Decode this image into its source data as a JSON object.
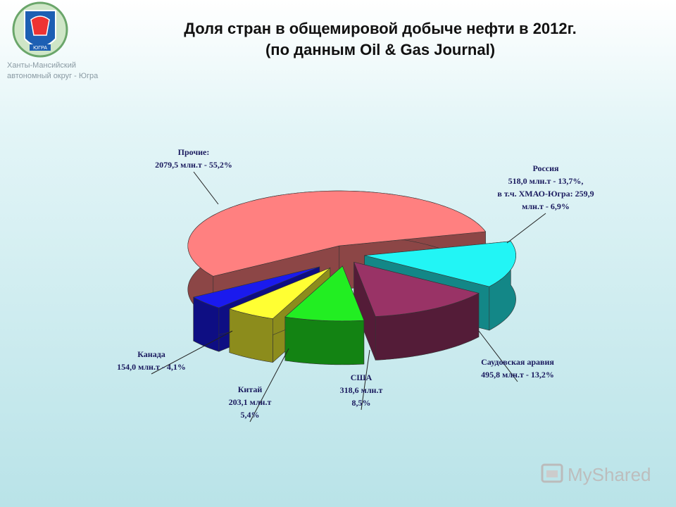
{
  "slide": {
    "logo_caption": [
      "Ханты-Мансийский",
      "автономный округ - Югра"
    ],
    "logo_text": "ЮГРА",
    "watermark": "MyShared"
  },
  "chart_data": {
    "type": "pie",
    "title": "Доля стран в общемировой добыче нефти в 2012г.",
    "subtitle": "(по данным Oil & Gas Journal)",
    "categories": [
      "Россия",
      "Саудовская аравия",
      "США",
      "Китай",
      "Канада",
      "Прочие:"
    ],
    "values": [
      518.0,
      495.8,
      318.6,
      203.1,
      154.0,
      2079.5
    ],
    "value_labels": [
      [
        "518,0 млн.т - 13,7%,",
        "в т.ч. ХМАО-Югра: 259,9",
        "млн.т - 6,9%"
      ],
      [
        "495,8 млн.т - 13,2%"
      ],
      [
        "318,6 млн.т",
        "8,5%"
      ],
      [
        "203,1 млн.т",
        "5,4%"
      ],
      [
        "154,0 млн.т - 4,1%"
      ],
      [
        "2079,5 млн.т - 55,2%"
      ]
    ],
    "colors": [
      "#22f5f5",
      "#993366",
      "#22ee22",
      "#ffff33",
      "#1a1aee",
      "#ff8080"
    ]
  }
}
